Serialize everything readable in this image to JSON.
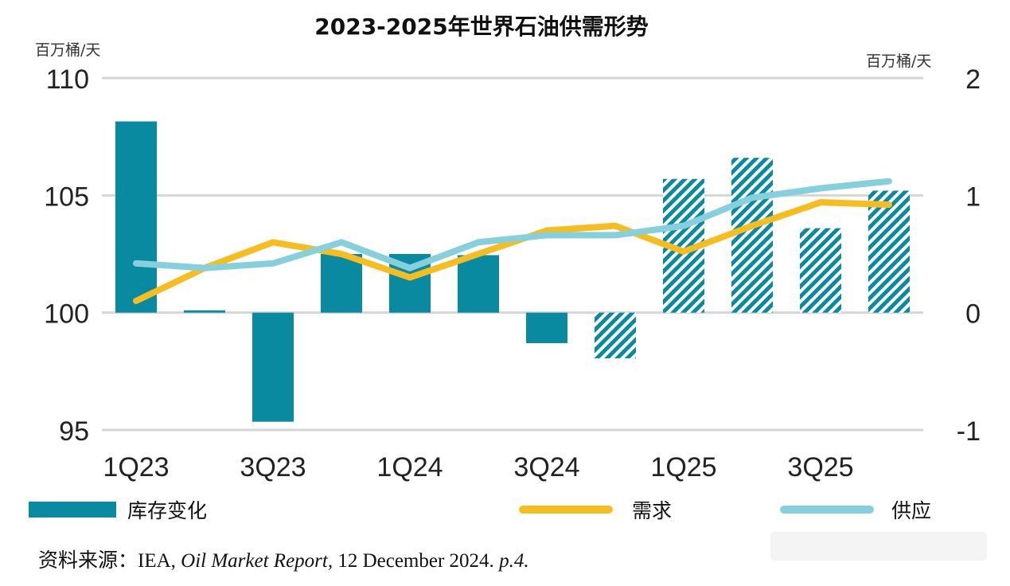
{
  "chart_data": {
    "type": "bar+line",
    "title": "2023-2025年世界石油供需形势",
    "left_axis": {
      "unit": "百万桶/天",
      "range": [
        95,
        110
      ],
      "ticks": [
        "95",
        "100",
        "105",
        "110"
      ]
    },
    "right_axis": {
      "unit": "百万桶/天",
      "range": [
        -1,
        2
      ],
      "ticks": [
        "-1",
        "0",
        "1",
        "2"
      ]
    },
    "quarters": [
      "1Q23",
      "2Q23",
      "3Q23",
      "4Q23",
      "1Q24",
      "2Q24",
      "3Q24",
      "4Q24",
      "1Q25",
      "2Q25",
      "3Q25",
      "4Q25"
    ],
    "x_tick_labels": [
      "1Q23",
      "3Q23",
      "1Q24",
      "3Q24",
      "1Q25",
      "3Q25"
    ],
    "series": [
      {
        "name": "库存变化",
        "kind": "bar",
        "axis": "right",
        "color": "#0a8aa0",
        "values": [
          1.63,
          0.02,
          -0.93,
          0.5,
          0.5,
          0.49,
          -0.26,
          -0.39,
          1.14,
          1.32,
          0.72,
          1.04
        ],
        "forecast": [
          false,
          false,
          false,
          false,
          false,
          false,
          false,
          true,
          true,
          true,
          true,
          true
        ]
      },
      {
        "name": "需求",
        "kind": "line",
        "axis": "left",
        "color": "#f5bd1f",
        "values": [
          100.5,
          101.9,
          103.0,
          102.5,
          101.5,
          102.5,
          103.5,
          103.7,
          102.6,
          103.7,
          104.7,
          104.6
        ]
      },
      {
        "name": "供应",
        "kind": "line",
        "axis": "left",
        "color": "#86cfdc",
        "values": [
          102.1,
          101.9,
          102.1,
          103.0,
          101.9,
          103.0,
          103.3,
          103.3,
          103.7,
          104.9,
          105.3,
          105.6
        ]
      }
    ]
  },
  "legend": {
    "inventory": "库存变化",
    "demand": "需求",
    "supply": "供应"
  },
  "source": {
    "prefix": "资料来源：IEA, ",
    "publication": "Oil Market Report,",
    "date": " 12 December 2024. ",
    "page": "p.4."
  }
}
